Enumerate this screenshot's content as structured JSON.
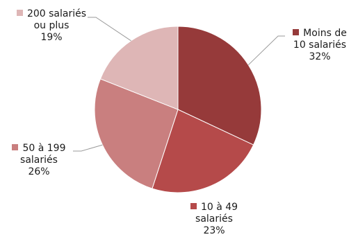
{
  "chart_data": {
    "type": "pie",
    "title": "",
    "slices": [
      {
        "name": "Moins de 10 salariés",
        "label_lines": [
          "Moins de",
          "10 salariés"
        ],
        "percent_label": "32%",
        "value": 32,
        "color": "#963a3a"
      },
      {
        "name": "10 à 49 salariés",
        "label_lines": [
          "10 à 49",
          "salariés"
        ],
        "percent_label": "23%",
        "value": 23,
        "color": "#b54a4a"
      },
      {
        "name": "50 à 199 salariés",
        "label_lines": [
          "50 à 199",
          "salariés"
        ],
        "percent_label": "26%",
        "value": 26,
        "color": "#c97f7f"
      },
      {
        "name": "200 salariés ou plus",
        "label_lines": [
          "200 salariés",
          "ou plus"
        ],
        "percent_label": "19%",
        "value": 19,
        "color": "#deb6b6"
      }
    ],
    "legend": "labels-outside-with-leader-lines"
  }
}
